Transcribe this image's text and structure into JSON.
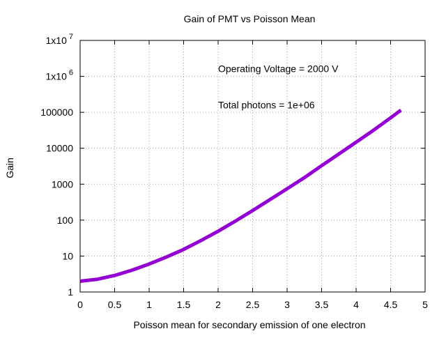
{
  "chart_data": {
    "type": "line",
    "title": "Gain of PMT vs Poisson Mean",
    "xlabel": "Poisson mean for secondary emission of one electron",
    "ylabel": "Gain",
    "xlim": [
      0,
      5
    ],
    "ylim": [
      1,
      10000000
    ],
    "yscale": "log",
    "grid": true,
    "x_ticks": [
      {
        "value": 0,
        "label": "0"
      },
      {
        "value": 0.5,
        "label": "0.5"
      },
      {
        "value": 1,
        "label": "1"
      },
      {
        "value": 1.5,
        "label": "1.5"
      },
      {
        "value": 2,
        "label": "2"
      },
      {
        "value": 2.5,
        "label": "2.5"
      },
      {
        "value": 3,
        "label": "3"
      },
      {
        "value": 3.5,
        "label": "3.5"
      },
      {
        "value": 4,
        "label": "4"
      },
      {
        "value": 4.5,
        "label": "4.5"
      },
      {
        "value": 5,
        "label": "5"
      }
    ],
    "y_ticks": [
      {
        "value": 1,
        "label": "1"
      },
      {
        "value": 10,
        "label": "10"
      },
      {
        "value": 100,
        "label": "100"
      },
      {
        "value": 1000,
        "label": "1000"
      },
      {
        "value": 10000,
        "label": "10000"
      },
      {
        "value": 100000,
        "label": "100000"
      },
      {
        "value": 1000000,
        "label": "1x10",
        "sup": "6"
      },
      {
        "value": 10000000,
        "label": "1x10",
        "sup": "7"
      }
    ],
    "annotations": [
      {
        "text": "Operating Voltage = 2000 V",
        "x": 2.0,
        "y": 1300000
      },
      {
        "text": "Total photons = 1e+06",
        "x": 2.0,
        "y": 130000
      }
    ],
    "series": [
      {
        "color": "#9400d3",
        "x": [
          0,
          0.25,
          0.5,
          0.75,
          1.0,
          1.25,
          1.5,
          1.75,
          2.0,
          2.25,
          2.5,
          2.75,
          3.0,
          3.25,
          3.5,
          3.75,
          4.0,
          4.25,
          4.5,
          4.65
        ],
        "y": [
          2.0,
          2.26,
          2.89,
          4.03,
          6.0,
          9.4,
          15.3,
          27.0,
          49.0,
          94.0,
          185.0,
          371.0,
          747.0,
          1520.0,
          3270.0,
          6930.0,
          14700.0,
          31500.0,
          70000.0,
          115000.0
        ]
      }
    ]
  }
}
